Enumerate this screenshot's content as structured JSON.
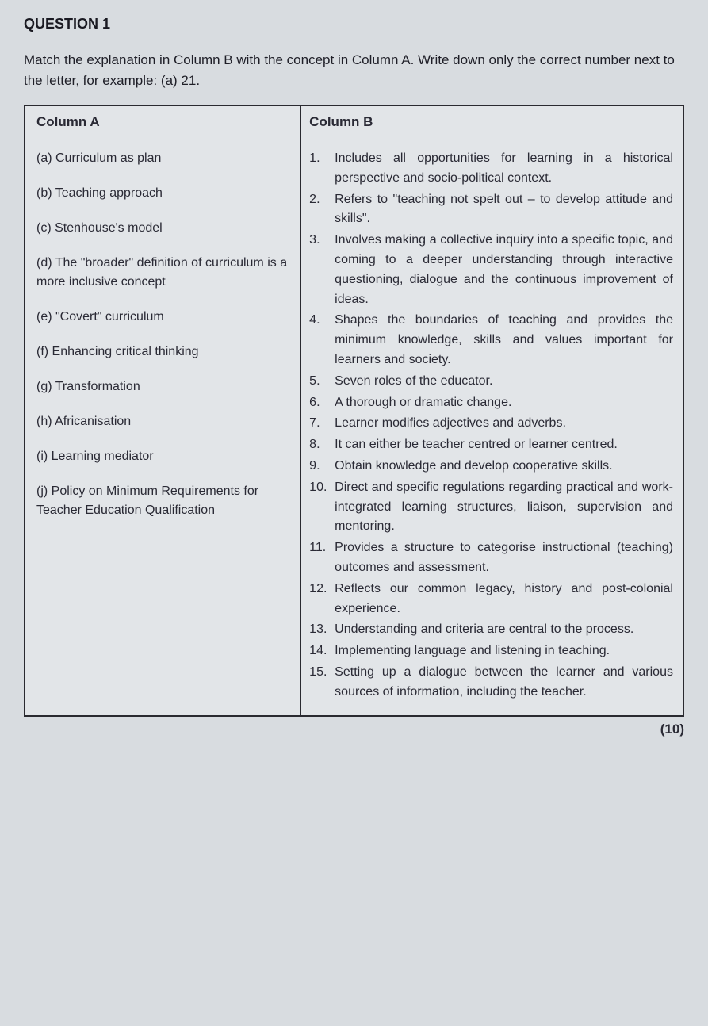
{
  "question_title": "QUESTION 1",
  "instructions": "Match the explanation in Column B with the concept in Column A. Write down only the correct number next to the letter, for example: (a) 21.",
  "columnA": {
    "header": "Column A",
    "items": [
      "(a) Curriculum as plan",
      "(b) Teaching approach",
      "(c) Stenhouse's model",
      "(d) The \"broader\" definition of curriculum is a more inclusive concept",
      "(e) \"Covert\" curriculum",
      "(f) Enhancing critical thinking",
      "(g) Transformation",
      "(h) Africanisation",
      "(i) Learning mediator",
      "(j) Policy on Minimum Requirements for Teacher Education Qualification"
    ]
  },
  "columnB": {
    "header": "Column B",
    "items": [
      {
        "n": "1.",
        "t": "Includes all opportunities for learning in a historical perspective and socio-political context."
      },
      {
        "n": "2.",
        "t": "Refers to \"teaching not spelt out – to develop attitude and skills\"."
      },
      {
        "n": "3.",
        "t": "Involves making a collective inquiry into a specific topic, and coming to a deeper understanding through interactive questioning, dialogue and the continuous improvement of ideas."
      },
      {
        "n": "4.",
        "t": "Shapes the boundaries of teaching and provides the minimum knowledge, skills and values important for learners and society."
      },
      {
        "n": "5.",
        "t": "Seven roles of the educator."
      },
      {
        "n": "6.",
        "t": "A thorough or dramatic change."
      },
      {
        "n": "7.",
        "t": "Learner modifies adjectives and adverbs."
      },
      {
        "n": "8.",
        "t": "It can either be teacher centred or learner centred."
      },
      {
        "n": "9.",
        "t": "Obtain knowledge and develop cooperative skills."
      },
      {
        "n": "10.",
        "t": "Direct and specific regulations regarding practical and work-integrated learning structures, liaison, supervision and mentoring."
      },
      {
        "n": "11.",
        "t": "Provides a structure to categorise instructional (teaching) outcomes and assessment."
      },
      {
        "n": "12.",
        "t": "Reflects our common legacy, history and post-colonial experience."
      },
      {
        "n": "13.",
        "t": "Understanding and criteria are central to the process."
      },
      {
        "n": "14.",
        "t": "Implementing language and listening in teaching."
      },
      {
        "n": "15.",
        "t": "Setting up a dialogue between the learner and various sources of information, including the teacher."
      }
    ]
  },
  "marks": "(10)"
}
